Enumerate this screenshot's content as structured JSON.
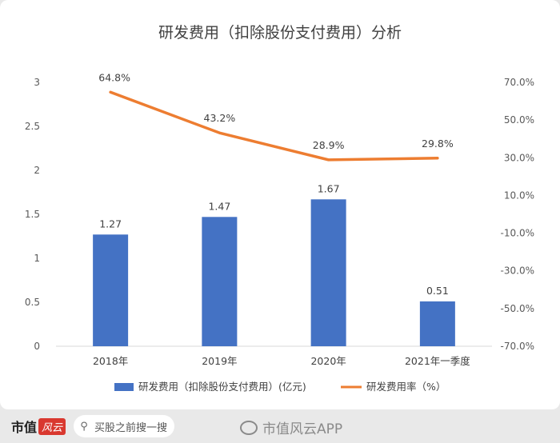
{
  "chart_data": {
    "type": "bar+line",
    "title": "研发费用（扣除股份支付费用）分析",
    "categories": [
      "2018年",
      "2019年",
      "2020年",
      "2021年一季度"
    ],
    "series": [
      {
        "name": "研发费用（扣除股份支付费用）(亿元)",
        "type": "bar",
        "axis": "left",
        "color": "#4472C4",
        "values": [
          1.27,
          1.47,
          1.67,
          0.51
        ],
        "labels": [
          "1.27",
          "1.47",
          "1.67",
          "0.51"
        ]
      },
      {
        "name": "研发费用率（%）",
        "type": "line",
        "axis": "right",
        "color": "#ED7D31",
        "values": [
          64.8,
          43.2,
          28.9,
          29.8
        ],
        "labels": [
          "64.8%",
          "43.2%",
          "28.9%",
          "29.8%"
        ]
      }
    ],
    "left_axis": {
      "ylim": [
        0,
        3
      ],
      "ticks": [
        0,
        0.5,
        1,
        1.5,
        2,
        2.5,
        3
      ],
      "tick_labels": [
        "0",
        "0.5",
        "1",
        "1.5",
        "2",
        "2.5",
        "3"
      ]
    },
    "right_axis": {
      "ylim": [
        -70,
        70
      ],
      "ticks": [
        -70,
        -50,
        -30,
        -10,
        10,
        30,
        50,
        70
      ],
      "tick_labels": [
        "-70.0%",
        "-50.0%",
        "-30.0%",
        "-10.0%",
        "10.0%",
        "30.0%",
        "50.0%",
        "70.0%"
      ]
    },
    "grid": false,
    "legend_position": "bottom"
  },
  "footer": {
    "brand_name": "市值",
    "brand_stamp": "风云",
    "search_placeholder": "买股之前搜一搜",
    "app_watermark": "市值风云APP"
  }
}
